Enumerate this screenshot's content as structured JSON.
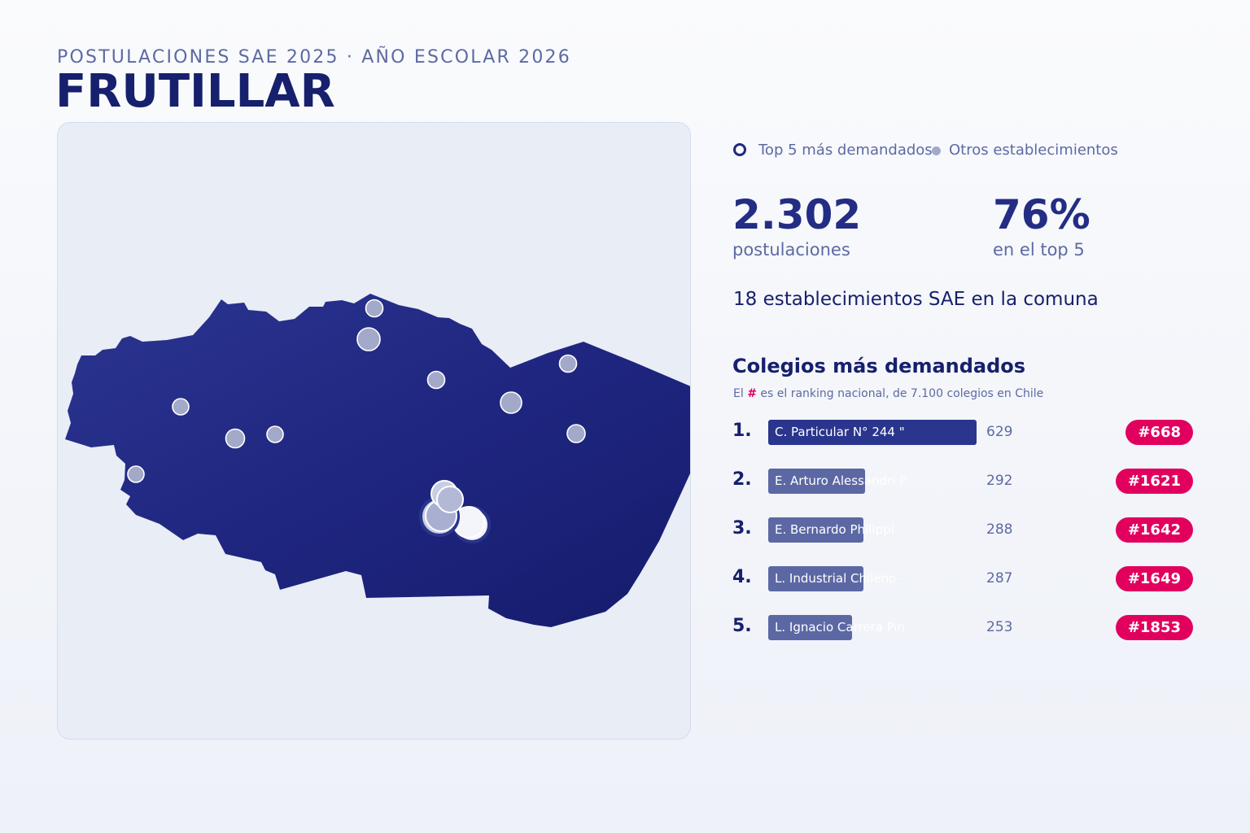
{
  "header": {
    "kicker": "POSTULACIONES SAE 2025 · AÑO ESCOLAR 2026",
    "title": "FRUTILLAR"
  },
  "legend": {
    "top5_label": "Top 5 más demandados",
    "others_label": "Otros establecimientos"
  },
  "stats": {
    "applications_value": "2.302",
    "applications_label": "postulaciones",
    "top5_share_value": "76%",
    "top5_share_label": "en el top 5"
  },
  "schools_total": "18 establecimientos SAE en la comuna",
  "ranking": {
    "title": "Colegios más demandados",
    "subtitle_prefix": "El",
    "subtitle_hash": "#",
    "subtitle_suffix": "es el ranking nacional, de 7.100 colegios en Chile",
    "max_applications": 629,
    "items": [
      {
        "rank": "1.",
        "name": "C. Particular N° 244 \"",
        "applications": 629,
        "national_rank": "#668"
      },
      {
        "rank": "2.",
        "name": "E. Arturo Alessandri P",
        "applications": 292,
        "national_rank": "#1621"
      },
      {
        "rank": "3.",
        "name": "E. Bernardo Philippi",
        "applications": 288,
        "national_rank": "#1642"
      },
      {
        "rank": "4.",
        "name": "L. Industrial Chileno-",
        "applications": 287,
        "national_rank": "#1649"
      },
      {
        "rank": "5.",
        "name": "L. Ignacio Carrera Pin",
        "applications": 253,
        "national_rank": "#1853"
      }
    ]
  },
  "colors": {
    "region_fill": "#1c2377",
    "accent": "#e2005f",
    "title": "#16206c",
    "muted": "#5d6aa3",
    "other_marker": "#a3a9c9"
  }
}
